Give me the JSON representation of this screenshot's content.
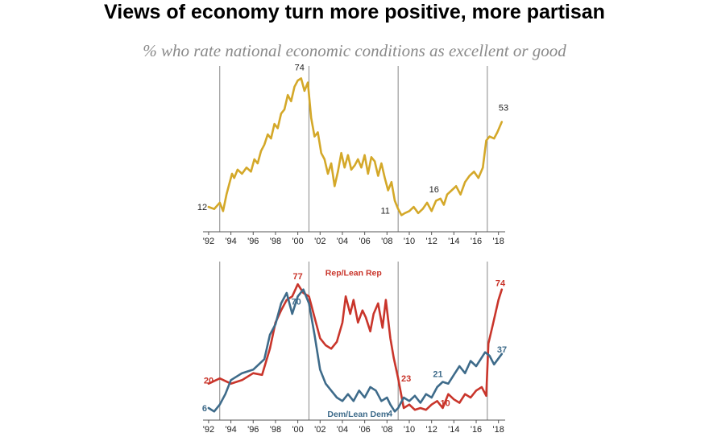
{
  "title": "Views of economy turn more positive, more partisan",
  "subtitle": "% who rate national economic conditions as excellent or good",
  "colors": {
    "total": "#d4a829",
    "rep": "#c9352b",
    "dem": "#3e6b8a",
    "axis": "#555555",
    "divider": "#888888"
  },
  "chart_data": [
    {
      "type": "line",
      "panel": "total",
      "x_tick_labels": [
        "'92",
        "'94",
        "'96",
        "'98",
        "'00",
        "'02",
        "'04",
        "'06",
        "'08",
        "'10",
        "'12",
        "'14",
        "'16",
        "'18"
      ],
      "x_ticks": [
        1992,
        1994,
        1996,
        1998,
        2000,
        2002,
        2004,
        2006,
        2008,
        2010,
        2012,
        2014,
        2016,
        2018
      ],
      "ylim": [
        0,
        80
      ],
      "presidency_dividers": [
        1993.0,
        2001.0,
        2009.0,
        2017.0
      ],
      "series": [
        {
          "color": "total",
          "x": [
            1992.0,
            1992.5,
            1993.0,
            1993.3,
            1993.6,
            1993.9,
            1994.1,
            1994.3,
            1994.6,
            1995.0,
            1995.4,
            1995.8,
            1996.1,
            1996.4,
            1996.7,
            1997.0,
            1997.3,
            1997.6,
            1997.9,
            1998.2,
            1998.5,
            1998.8,
            1999.1,
            1999.4,
            1999.7,
            2000.0,
            2000.3,
            2000.6,
            2000.9,
            2001.2,
            2001.5,
            2001.8,
            2002.1,
            2002.4,
            2002.7,
            2003.0,
            2003.3,
            2003.6,
            2003.9,
            2004.2,
            2004.5,
            2004.8,
            2005.1,
            2005.4,
            2005.7,
            2006.0,
            2006.3,
            2006.6,
            2006.9,
            2007.2,
            2007.5,
            2007.8,
            2008.1,
            2008.4,
            2008.7,
            2009.0,
            2009.3,
            2009.6,
            2010.0,
            2010.4,
            2010.8,
            2011.2,
            2011.6,
            2012.0,
            2012.4,
            2012.8,
            2013.1,
            2013.4,
            2013.8,
            2014.2,
            2014.6,
            2015.0,
            2015.4,
            2015.8,
            2016.2,
            2016.6,
            2016.9,
            2017.2,
            2017.6,
            2017.9,
            2018.3
          ],
          "values": [
            12,
            11,
            14,
            10,
            18,
            24,
            28,
            26,
            30,
            28,
            31,
            29,
            35,
            33,
            39,
            42,
            47,
            45,
            52,
            50,
            57,
            59,
            66,
            63,
            70,
            73,
            74,
            68,
            72,
            55,
            46,
            48,
            38,
            35,
            28,
            33,
            22,
            29,
            38,
            31,
            37,
            30,
            32,
            35,
            31,
            37,
            28,
            36,
            34,
            27,
            33,
            26,
            20,
            24,
            15,
            11,
            8,
            9,
            10,
            12,
            9,
            11,
            14,
            10,
            15,
            16,
            13,
            18,
            20,
            22,
            18,
            24,
            27,
            29,
            26,
            31,
            44,
            46,
            45,
            48,
            53
          ]
        }
      ],
      "labels": [
        {
          "text": "12",
          "x": 1992.0,
          "y": 12
        },
        {
          "text": "74",
          "x": 2000.3,
          "y": 74
        },
        {
          "text": "11",
          "x": 2009.0,
          "y": 11
        },
        {
          "text": "16",
          "x": 2012.8,
          "y": 16
        },
        {
          "text": "53",
          "x": 2018.3,
          "y": 53
        }
      ]
    },
    {
      "type": "line",
      "panel": "partisan",
      "x_tick_labels": [
        "'92",
        "'94",
        "'96",
        "'98",
        "'00",
        "'02",
        "'04",
        "'06",
        "'08",
        "'10",
        "'12",
        "'14",
        "'16",
        "'18"
      ],
      "x_ticks": [
        1992,
        1994,
        1996,
        1998,
        2000,
        2002,
        2004,
        2006,
        2008,
        2010,
        2012,
        2014,
        2016,
        2018
      ],
      "ylim": [
        0,
        90
      ],
      "presidency_dividers": [
        1993.0,
        2001.0,
        2009.0,
        2017.0
      ],
      "series": [
        {
          "name": "Rep/Lean Rep",
          "color": "rep",
          "x": [
            1992.0,
            1993.0,
            1994.0,
            1995.0,
            1996.0,
            1996.8,
            1997.5,
            1998.0,
            1998.5,
            1999.0,
            1999.5,
            2000.0,
            2000.5,
            2001.0,
            2001.5,
            2002.0,
            2002.5,
            2003.0,
            2003.5,
            2004.0,
            2004.3,
            2004.7,
            2005.0,
            2005.4,
            2005.8,
            2006.1,
            2006.5,
            2006.8,
            2007.2,
            2007.6,
            2007.9,
            2008.3,
            2008.6,
            2009.0,
            2009.5,
            2010.0,
            2010.5,
            2011.0,
            2011.5,
            2012.0,
            2012.5,
            2013.0,
            2013.5,
            2014.0,
            2014.5,
            2015.0,
            2015.5,
            2016.0,
            2016.5,
            2016.9,
            2017.1,
            2017.5,
            2018.0,
            2018.3
          ],
          "values": [
            20,
            23,
            20,
            22,
            26,
            25,
            40,
            55,
            62,
            68,
            70,
            77,
            72,
            70,
            58,
            46,
            42,
            40,
            44,
            55,
            70,
            60,
            68,
            55,
            62,
            58,
            50,
            60,
            66,
            52,
            68,
            46,
            35,
            23,
            6,
            8,
            5,
            6,
            5,
            8,
            10,
            6,
            14,
            11,
            9,
            14,
            12,
            16,
            18,
            13,
            43,
            54,
            68,
            74
          ]
        },
        {
          "name": "Dem/Lean Dem",
          "color": "dem",
          "x": [
            1992.0,
            1992.5,
            1993.0,
            1993.5,
            1994.0,
            1995.0,
            1996.0,
            1997.0,
            1997.5,
            1998.0,
            1998.5,
            1999.0,
            1999.5,
            2000.0,
            2000.5,
            2001.0,
            2001.5,
            2002.0,
            2002.5,
            2003.0,
            2003.5,
            2004.0,
            2004.5,
            2005.0,
            2005.5,
            2006.0,
            2006.5,
            2007.0,
            2007.5,
            2008.0,
            2008.3,
            2008.7,
            2009.0,
            2009.5,
            2010.0,
            2010.5,
            2011.0,
            2011.5,
            2012.0,
            2012.5,
            2013.0,
            2013.5,
            2014.0,
            2014.5,
            2015.0,
            2015.5,
            2016.0,
            2016.4,
            2016.8,
            2017.2,
            2017.6,
            2018.3
          ],
          "values": [
            6,
            4,
            8,
            14,
            22,
            26,
            28,
            34,
            48,
            54,
            66,
            72,
            60,
            70,
            74,
            66,
            48,
            28,
            20,
            16,
            12,
            10,
            14,
            10,
            16,
            12,
            18,
            16,
            10,
            12,
            8,
            4,
            6,
            12,
            10,
            13,
            9,
            14,
            12,
            18,
            21,
            20,
            25,
            30,
            26,
            33,
            30,
            34,
            38,
            36,
            31,
            37
          ]
        }
      ],
      "labels": [
        {
          "text": "20",
          "x": 1992.0,
          "y": 20,
          "color": "rep"
        },
        {
          "text": "6",
          "x": 1992.0,
          "y": 6,
          "color": "dem"
        },
        {
          "text": "77",
          "x": 2000.0,
          "y": 77,
          "color": "rep"
        },
        {
          "text": "70",
          "x": 2000.0,
          "y": 70,
          "color": "dem"
        },
        {
          "text": "23",
          "x": 2009.0,
          "y": 23,
          "color": "rep"
        },
        {
          "text": "4",
          "x": 2008.7,
          "y": 4,
          "color": "dem"
        },
        {
          "text": "21",
          "x": 2013.0,
          "y": 21,
          "color": "dem"
        },
        {
          "text": "10",
          "x": 2012.5,
          "y": 10,
          "color": "rep"
        },
        {
          "text": "74",
          "x": 2018.3,
          "y": 74,
          "color": "rep"
        },
        {
          "text": "37",
          "x": 2018.3,
          "y": 37,
          "color": "dem"
        }
      ]
    }
  ]
}
